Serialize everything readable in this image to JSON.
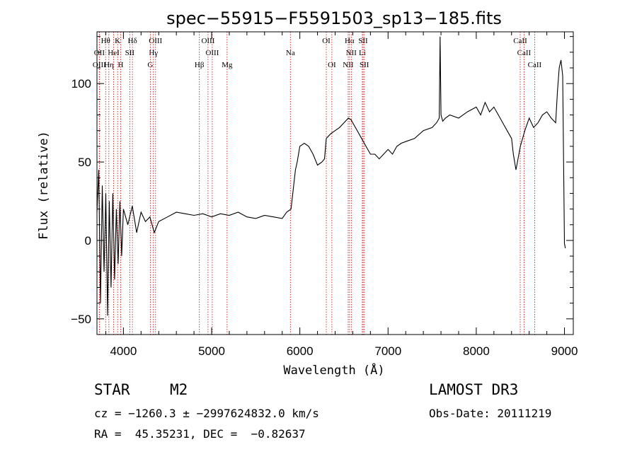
{
  "chart_data": {
    "type": "line",
    "title": "spec−55915−F5591503_sp13−185.fits",
    "xlabel": "Wavelength (Å)",
    "ylabel": "Flux (relative)",
    "xlim": [
      3700,
      9100
    ],
    "ylim": [
      -60,
      133
    ],
    "xticks": [
      4000,
      5000,
      6000,
      7000,
      8000,
      9000
    ],
    "yticks": [
      -50,
      0,
      50,
      100
    ],
    "line_color": "#000000",
    "marker_color": "#cc0000",
    "series": [
      {
        "name": "spectrum",
        "x": [
          3700,
          3720,
          3740,
          3760,
          3780,
          3800,
          3820,
          3840,
          3860,
          3880,
          3900,
          3920,
          3940,
          3960,
          3980,
          4000,
          4050,
          4100,
          4150,
          4200,
          4250,
          4300,
          4350,
          4400,
          4500,
          4600,
          4700,
          4800,
          4900,
          5000,
          5100,
          5200,
          5300,
          5400,
          5500,
          5600,
          5700,
          5800,
          5850,
          5900,
          5920,
          5950,
          5970,
          6000,
          6050,
          6100,
          6150,
          6200,
          6250,
          6280,
          6300,
          6350,
          6400,
          6450,
          6500,
          6550,
          6580,
          6600,
          6650,
          6700,
          6750,
          6800,
          6850,
          6900,
          6950,
          7000,
          7050,
          7100,
          7150,
          7200,
          7300,
          7400,
          7500,
          7550,
          7580,
          7590,
          7600,
          7610,
          7620,
          7650,
          7700,
          7800,
          7900,
          8000,
          8050,
          8100,
          8150,
          8200,
          8250,
          8300,
          8350,
          8400,
          8420,
          8450,
          8500,
          8550,
          8600,
          8650,
          8700,
          8750,
          8800,
          8850,
          8900,
          8920,
          8940,
          8960,
          8980,
          9000,
          9010
        ],
        "y": [
          18,
          45,
          -40,
          35,
          -20,
          30,
          -48,
          25,
          -30,
          30,
          -25,
          20,
          -15,
          25,
          -10,
          20,
          10,
          22,
          5,
          18,
          12,
          15,
          5,
          12,
          15,
          18,
          17,
          16,
          17,
          15,
          17,
          16,
          18,
          15,
          14,
          16,
          15,
          14,
          18,
          20,
          30,
          45,
          50,
          60,
          62,
          60,
          55,
          48,
          50,
          52,
          65,
          68,
          70,
          72,
          75,
          78,
          77,
          75,
          70,
          65,
          60,
          55,
          55,
          52,
          55,
          58,
          55,
          60,
          62,
          63,
          65,
          70,
          72,
          75,
          78,
          130,
          80,
          78,
          76,
          78,
          80,
          78,
          82,
          85,
          80,
          88,
          82,
          85,
          80,
          75,
          70,
          65,
          55,
          45,
          60,
          70,
          78,
          72,
          75,
          80,
          82,
          78,
          75,
          95,
          110,
          115,
          105,
          -2,
          -5
        ]
      }
    ],
    "spectral_lines": [
      {
        "label": "Hθ",
        "wavelength": 3798,
        "row": 0
      },
      {
        "label": "K",
        "wavelength": 3934,
        "row": 0
      },
      {
        "label": "Hδ",
        "wavelength": 4102,
        "row": 0
      },
      {
        "label": "OIII",
        "wavelength": 4364,
        "row": 0
      },
      {
        "label": "OIII",
        "wavelength": 4959,
        "row": 0
      },
      {
        "label": "OI",
        "wavelength": 6300,
        "row": 0
      },
      {
        "label": "Hα",
        "wavelength": 6563,
        "row": 0
      },
      {
        "label": "SII",
        "wavelength": 6717,
        "row": 0
      },
      {
        "label": "CaII",
        "wavelength": 8498,
        "row": 0
      },
      {
        "label": "OII",
        "wavelength": 3727,
        "row": 1
      },
      {
        "label": "HeI",
        "wavelength": 3889,
        "row": 1
      },
      {
        "label": "SII",
        "wavelength": 4072,
        "row": 1
      },
      {
        "label": "Hγ",
        "wavelength": 4340,
        "row": 1
      },
      {
        "label": "OIII",
        "wavelength": 5007,
        "row": 1
      },
      {
        "label": "Na",
        "wavelength": 5893,
        "row": 1
      },
      {
        "label": "NII",
        "wavelength": 6583,
        "row": 1
      },
      {
        "label": "Li",
        "wavelength": 6708,
        "row": 1
      },
      {
        "label": "CaII",
        "wavelength": 8542,
        "row": 1
      },
      {
        "label": "OIII",
        "wavelength": 3727,
        "row": 2
      },
      {
        "label": "Hη",
        "wavelength": 3835,
        "row": 2
      },
      {
        "label": "H",
        "wavelength": 3969,
        "row": 2
      },
      {
        "label": "G",
        "wavelength": 4305,
        "row": 2
      },
      {
        "label": "Hβ",
        "wavelength": 4861,
        "row": 2
      },
      {
        "label": "Mg",
        "wavelength": 5175,
        "row": 2
      },
      {
        "label": "OI",
        "wavelength": 6363,
        "row": 2
      },
      {
        "label": "NII",
        "wavelength": 6548,
        "row": 2
      },
      {
        "label": "SII",
        "wavelength": 6731,
        "row": 2
      },
      {
        "label": "CaII",
        "wavelength": 8662,
        "row": 2
      }
    ]
  },
  "info": {
    "classification": "STAR",
    "subclass": "M2",
    "survey": "LAMOST DR3",
    "cz": "cz = −1260.3 ± −2997624832.0 km/s",
    "obs_date": "Obs-Date: 20111219",
    "coords": "RA =  45.35231, DEC =  −0.82637"
  }
}
